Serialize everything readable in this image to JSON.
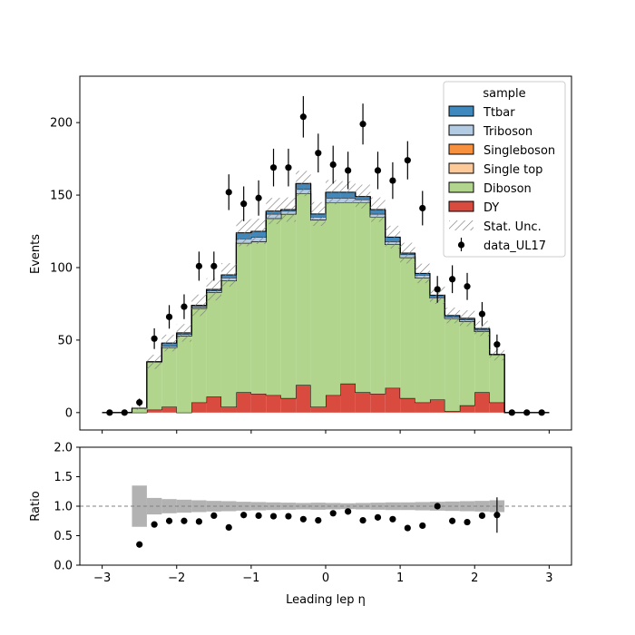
{
  "chart_data": [
    {
      "type": "bar",
      "subtype": "stacked-step-histogram",
      "title": "",
      "xlabel": "",
      "ylabel": "Events",
      "xlim": [
        -3.3,
        3.3
      ],
      "ylim": [
        -12,
        232
      ],
      "yticks": [
        0,
        50,
        100,
        150,
        200
      ],
      "xticks": [
        -3,
        -2,
        -1,
        0,
        1,
        2,
        3
      ],
      "bin_edges": [
        -3.0,
        -2.8,
        -2.6,
        -2.4,
        -2.2,
        -2.0,
        -1.8,
        -1.6,
        -1.4,
        -1.2,
        -1.0,
        -0.8,
        -0.6,
        -0.4,
        -0.2,
        0.0,
        0.2,
        0.4,
        0.6,
        0.8,
        1.0,
        1.2,
        1.4,
        1.6,
        1.8,
        2.0,
        2.2,
        2.4,
        2.6,
        2.8,
        3.0
      ],
      "series": [
        {
          "name": "DY",
          "color": "#d94a3f",
          "values": [
            0,
            0,
            0,
            2,
            4,
            0,
            7,
            11,
            4,
            14,
            13,
            12,
            10,
            19,
            4,
            12,
            20,
            14,
            13,
            17,
            10,
            7,
            9,
            1,
            5,
            14,
            7,
            0,
            0,
            0
          ]
        },
        {
          "name": "Diboson",
          "color": "#b1d58c",
          "values": [
            0,
            0,
            3,
            33,
            41,
            53,
            65,
            72,
            87,
            103,
            105,
            122,
            127,
            132,
            129,
            133,
            125,
            131,
            122,
            99,
            97,
            86,
            70,
            64,
            58,
            42,
            33,
            0,
            0,
            0
          ]
        },
        {
          "name": "Single top",
          "color": "#fdc999",
          "values": [
            0,
            0,
            0,
            0,
            0,
            0,
            0,
            0,
            0,
            0,
            0,
            0,
            0,
            0,
            0,
            0,
            0,
            0,
            0,
            0,
            0,
            0,
            0,
            0,
            0,
            0,
            0,
            0,
            0,
            0
          ]
        },
        {
          "name": "Singleboson",
          "color": "#f7913f",
          "values": [
            0,
            0,
            0,
            0,
            0,
            0,
            0,
            0,
            0,
            0,
            0,
            0,
            0,
            0,
            0,
            0,
            0,
            0,
            0,
            0,
            0,
            0,
            0,
            0,
            0,
            0,
            0,
            0,
            0,
            0
          ]
        },
        {
          "name": "Triboson",
          "color": "#b4cbe4",
          "values": [
            0,
            0,
            0,
            0,
            1,
            1,
            1,
            1,
            2,
            3,
            3,
            3,
            2,
            3,
            2,
            3,
            3,
            2,
            2,
            2,
            2,
            2,
            1,
            1,
            1,
            1,
            0,
            0,
            0,
            0
          ]
        },
        {
          "name": "Ttbar",
          "color": "#3f89be",
          "values": [
            0,
            0,
            0,
            0,
            2,
            1,
            1,
            1,
            2,
            4,
            4,
            2,
            1,
            4,
            2,
            4,
            4,
            2,
            3,
            3,
            1,
            1,
            1,
            1,
            1,
            1,
            0,
            0,
            0,
            0
          ]
        }
      ],
      "uncertainty": {
        "name": "Stat. Unc.",
        "rel_band": [
          0,
          0,
          0.35,
          0.14,
          0.12,
          0.11,
          0.1,
          0.09,
          0.085,
          0.075,
          0.07,
          0.065,
          0.06,
          0.055,
          0.06,
          0.055,
          0.05,
          0.055,
          0.06,
          0.065,
          0.065,
          0.07,
          0.075,
          0.08,
          0.085,
          0.09,
          0.1,
          0,
          0,
          0
        ]
      },
      "data": {
        "name": "data_UL17",
        "color": "#000000",
        "x": [
          -2.9,
          -2.7,
          -2.5,
          -2.3,
          -2.1,
          -1.9,
          -1.7,
          -1.5,
          -1.3,
          -1.1,
          -0.9,
          -0.7,
          -0.5,
          -0.3,
          -0.1,
          0.1,
          0.3,
          0.5,
          0.7,
          0.9,
          1.1,
          1.3,
          1.5,
          1.7,
          1.9,
          2.1,
          2.3,
          2.5,
          2.7,
          2.9
        ],
        "y": [
          0,
          0,
          7,
          51,
          66,
          73,
          101,
          101,
          152,
          144,
          148,
          169,
          169,
          204,
          179,
          171,
          167,
          199,
          167,
          160,
          174,
          141,
          85,
          92,
          87,
          68,
          47,
          0,
          0,
          0
        ]
      },
      "legend": {
        "title": "sample",
        "position": "top-right",
        "entries": [
          "Ttbar",
          "Triboson",
          "Singleboson",
          "Single top",
          "Diboson",
          "DY",
          "Stat. Unc.",
          "data_UL17"
        ]
      }
    },
    {
      "type": "scatter",
      "subtype": "ratio-panel",
      "xlabel": "Leading lep η",
      "ylabel": "Ratio",
      "xlim": [
        -3.3,
        3.3
      ],
      "ylim": [
        0,
        2
      ],
      "yticks": [
        0.0,
        0.5,
        1.0,
        1.5,
        2.0
      ],
      "ytick_labels": [
        "0.0",
        "0.5",
        "1.0",
        "1.5",
        "2.0"
      ],
      "xticks": [
        -3,
        -2,
        -1,
        0,
        1,
        2,
        3
      ],
      "reference_line": 1.0,
      "ratio": {
        "x": [
          -2.5,
          -2.3,
          -2.1,
          -1.9,
          -1.7,
          -1.5,
          -1.3,
          -1.1,
          -0.9,
          -0.7,
          -0.5,
          -0.3,
          -0.1,
          0.1,
          0.3,
          0.5,
          0.7,
          0.9,
          1.1,
          1.3,
          1.5,
          1.7,
          1.9,
          2.1,
          2.3
        ],
        "y": [
          0.35,
          0.69,
          0.75,
          0.75,
          0.74,
          0.84,
          0.64,
          0.85,
          0.84,
          0.83,
          0.83,
          0.78,
          0.76,
          0.88,
          0.91,
          0.76,
          0.81,
          0.78,
          0.63,
          0.67,
          1.0,
          0.75,
          0.73,
          0.84,
          0.85
        ],
        "err_index": [
          24
        ],
        "err": [
          0.3
        ]
      }
    }
  ]
}
